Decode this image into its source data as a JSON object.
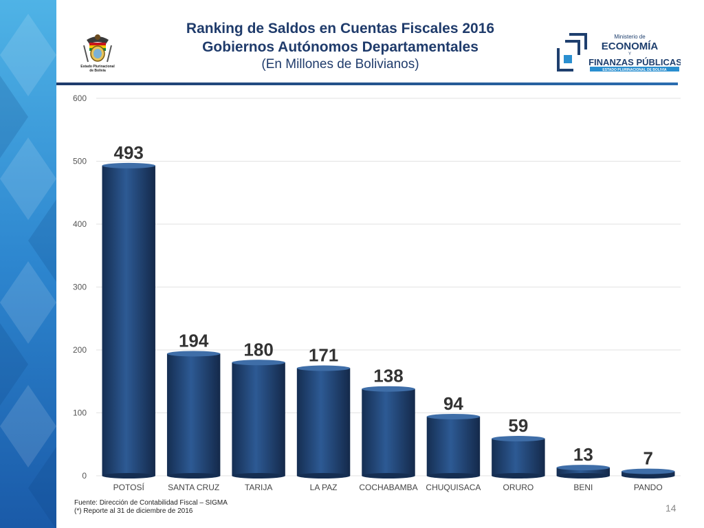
{
  "header": {
    "title_line1": "Ranking de Saldos en Cuentas Fiscales 2016",
    "title_line2": "Gobiernos Autónomos Departamentales",
    "title_line3": "(En Millones de Bolivianos)"
  },
  "logos": {
    "coat_caption_line1": "Estado Plurinacional",
    "coat_caption_line2": "de Bolivia",
    "ministry_small": "Ministerio de",
    "ministry_line1": "ECONOMÍA",
    "ministry_y": "Y",
    "ministry_line2": "FINANZAS PÚBLICAS",
    "ministry_band": "ESTADO PLURINACIONAL DE BOLIVIA"
  },
  "chart_data": {
    "type": "bar",
    "categories": [
      "POTOSÍ",
      "SANTA CRUZ",
      "TARIJA",
      "LA PAZ",
      "COCHABAMBA",
      "CHUQUISACA",
      "ORURO",
      "BENI",
      "PANDO"
    ],
    "values": [
      493,
      194,
      180,
      171,
      138,
      94,
      59,
      13,
      7
    ],
    "value_labels": [
      "493",
      "194",
      "180",
      "171",
      "138",
      "94",
      "59",
      "13",
      "7"
    ],
    "y_ticks": [
      "0",
      "100",
      "200",
      "300",
      "400",
      "500",
      "600"
    ],
    "ylim": [
      0,
      600
    ],
    "grid": true,
    "legend": "none",
    "bar_color": "#1e3f6e"
  },
  "footer": {
    "source": "Fuente: Dirección de Contabilidad Fiscal – SIGMA",
    "note": "(*) Reporte al 31 de diciembre de 2016",
    "page_number": "14"
  }
}
